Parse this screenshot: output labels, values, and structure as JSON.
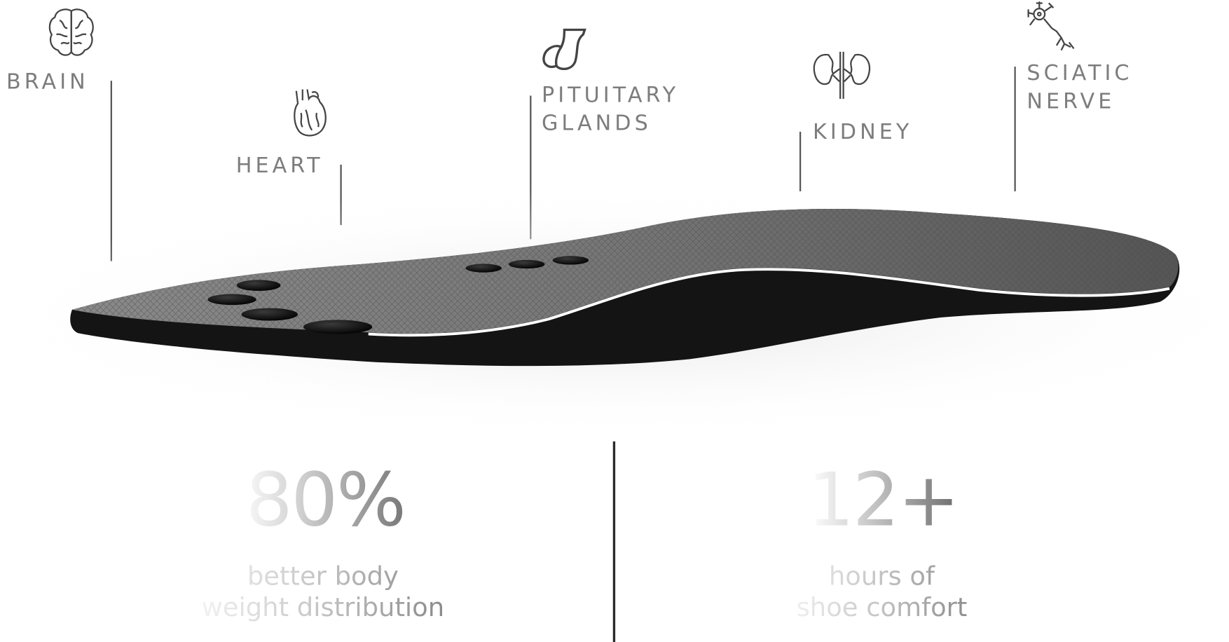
{
  "organs": [
    {
      "label_lines": [
        "BRAIN"
      ],
      "icon": "brain-icon"
    },
    {
      "label_lines": [
        "HEART"
      ],
      "icon": "heart-icon"
    },
    {
      "label_lines": [
        "PITUITARY",
        "GLANDS"
      ],
      "icon": "pituitary-gland-icon"
    },
    {
      "label_lines": [
        "KIDNEY"
      ],
      "icon": "kidney-icon"
    },
    {
      "label_lines": [
        "SCIATIC",
        "NERVE"
      ],
      "icon": "neuron-icon"
    }
  ],
  "stats": [
    {
      "value": "80%",
      "caption_lines": [
        "better body",
        "weight distribution"
      ]
    },
    {
      "value": "12+",
      "caption_lines": [
        "hours of",
        "shoe comfort"
      ]
    }
  ],
  "colors": {
    "label": "#7d7d7d",
    "insole_top": "#6e6e6e",
    "insole_side": "#141414",
    "divider": "#2a2a2a"
  }
}
